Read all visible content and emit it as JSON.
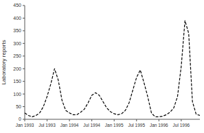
{
  "chart_data": {
    "type": "line",
    "ylabel": "Laboratory reports",
    "x": [
      1,
      2,
      3,
      4,
      5,
      6,
      7,
      8,
      9,
      10,
      11,
      12,
      13,
      14,
      15,
      16,
      17,
      18,
      19,
      20,
      21,
      22,
      23,
      24,
      25,
      26,
      27,
      28,
      29,
      30,
      31,
      32,
      33,
      34,
      35,
      36,
      37,
      38,
      39,
      40,
      41,
      42,
      43,
      44,
      45,
      46,
      47,
      48
    ],
    "values": [
      25,
      15,
      10,
      15,
      25,
      50,
      90,
      140,
      200,
      155,
      75,
      35,
      25,
      18,
      18,
      28,
      40,
      65,
      95,
      105,
      95,
      70,
      45,
      30,
      22,
      18,
      22,
      35,
      65,
      115,
      165,
      195,
      145,
      90,
      25,
      10,
      10,
      12,
      18,
      28,
      45,
      90,
      210,
      390,
      340,
      70,
      20,
      15
    ],
    "color": "#000000",
    "line_style": "dashed",
    "xlim": [
      1,
      48
    ],
    "xticks": [
      {
        "value": 1,
        "label": "Jan 1993"
      },
      {
        "value": 7,
        "label": "Jul 1993"
      },
      {
        "value": 13,
        "label": "Jan 1994"
      },
      {
        "value": 19,
        "label": "Jul 1994"
      },
      {
        "value": 25,
        "label": "Jan 1995"
      },
      {
        "value": 31,
        "label": "Jul 1995"
      },
      {
        "value": 37,
        "label": "Jan 1996"
      },
      {
        "value": 43,
        "label": "Jul 1996"
      }
    ],
    "ylim": [
      0,
      450
    ],
    "yticks": [
      0,
      50,
      100,
      150,
      200,
      250,
      300,
      350,
      400,
      450
    ],
    "grid": false
  }
}
